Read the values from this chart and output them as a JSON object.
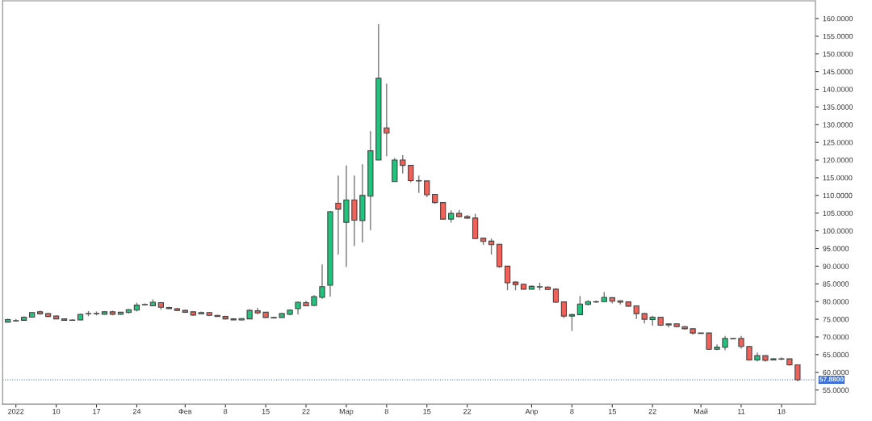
{
  "chart_data": {
    "type": "candlestick",
    "categories": [
      null,
      "2022",
      null,
      null,
      null,
      null,
      "10",
      null,
      null,
      null,
      null,
      "17",
      null,
      null,
      null,
      null,
      "24",
      null,
      null,
      null,
      null,
      null,
      "Фев",
      null,
      null,
      null,
      null,
      "8",
      null,
      null,
      null,
      null,
      "15",
      null,
      null,
      null,
      null,
      "22",
      null,
      null,
      null,
      null,
      "Мар",
      null,
      null,
      null,
      null,
      "8",
      null,
      null,
      null,
      null,
      "15",
      null,
      null,
      null,
      null,
      "22",
      null,
      null,
      null,
      null,
      null,
      null,
      null,
      "Апр",
      null,
      null,
      null,
      null,
      "8",
      null,
      null,
      null,
      null,
      "15",
      null,
      null,
      null,
      null,
      "22",
      null,
      null,
      null,
      null,
      null,
      "Май",
      null,
      null,
      null,
      null,
      "11",
      null,
      null,
      null,
      null,
      "18",
      null,
      null
    ],
    "ohlc": [
      [
        74.2,
        75.2,
        74.1,
        74.9
      ],
      [
        74.5,
        75.1,
        74.4,
        74.6
      ],
      [
        74.7,
        75.8,
        74.6,
        75.6
      ],
      [
        75.6,
        77.0,
        75.5,
        76.9
      ],
      [
        77.1,
        77.5,
        76.3,
        76.5
      ],
      [
        76.6,
        76.8,
        75.6,
        75.8
      ],
      [
        75.9,
        76.1,
        75.0,
        75.1
      ],
      [
        75.1,
        75.2,
        74.6,
        74.7
      ],
      [
        74.8,
        75.0,
        74.6,
        74.7
      ],
      [
        74.8,
        76.6,
        74.7,
        76.4
      ],
      [
        76.5,
        77.3,
        75.9,
        76.6
      ],
      [
        76.6,
        77.2,
        76.1,
        76.5
      ],
      [
        76.4,
        77.3,
        76.3,
        77.1
      ],
      [
        77.1,
        77.4,
        76.1,
        76.4
      ],
      [
        76.4,
        77.1,
        76.3,
        77.0
      ],
      [
        76.9,
        77.9,
        76.6,
        77.7
      ],
      [
        77.6,
        79.7,
        77.2,
        79.0
      ],
      [
        79.1,
        79.5,
        78.9,
        79.2
      ],
      [
        78.8,
        80.6,
        78.7,
        79.8
      ],
      [
        79.7,
        79.9,
        77.7,
        78.4
      ],
      [
        78.3,
        78.5,
        77.9,
        78.0
      ],
      [
        78.0,
        78.2,
        77.4,
        77.5
      ],
      [
        77.5,
        77.7,
        76.8,
        77.0
      ],
      [
        77.1,
        77.2,
        76.0,
        76.2
      ],
      [
        76.5,
        77.2,
        76.4,
        76.9
      ],
      [
        76.9,
        77.0,
        75.9,
        76.1
      ],
      [
        76.1,
        76.2,
        75.7,
        75.8
      ],
      [
        75.8,
        76.0,
        74.9,
        75.1
      ],
      [
        75.1,
        75.3,
        74.7,
        74.8
      ],
      [
        74.8,
        75.3,
        74.7,
        75.2
      ],
      [
        75.1,
        77.9,
        75.0,
        77.5
      ],
      [
        77.4,
        78.2,
        76.4,
        76.8
      ],
      [
        77.0,
        77.1,
        75.3,
        75.5
      ],
      [
        75.5,
        75.6,
        75.2,
        75.4
      ],
      [
        75.5,
        76.8,
        75.4,
        76.6
      ],
      [
        76.4,
        77.8,
        76.1,
        77.6
      ],
      [
        78.0,
        80.0,
        76.4,
        79.8
      ],
      [
        79.7,
        80.2,
        78.7,
        78.8
      ],
      [
        78.9,
        81.8,
        78.7,
        81.4
      ],
      [
        81.2,
        90.5,
        80.8,
        84.2
      ],
      [
        84.6,
        105.6,
        81.4,
        105.4
      ],
      [
        107.8,
        115.6,
        93.3,
        106.1
      ],
      [
        102.4,
        118.5,
        89.8,
        108.7
      ],
      [
        108.7,
        115.6,
        95.7,
        103.0
      ],
      [
        102.9,
        118.8,
        96.7,
        110.0
      ],
      [
        109.8,
        128.2,
        100.2,
        122.6
      ],
      [
        120.0,
        158.4,
        120.0,
        143.1
      ],
      [
        129.1,
        141.6,
        121.1,
        127.6
      ],
      [
        113.9,
        120.6,
        113.9,
        120.0
      ],
      [
        120.0,
        121.4,
        116.2,
        118.5
      ],
      [
        118.5,
        118.6,
        113.7,
        114.2
      ],
      [
        114.2,
        115.6,
        110.7,
        114.1
      ],
      [
        114.1,
        114.2,
        109.5,
        110.2
      ],
      [
        110.3,
        110.4,
        107.6,
        108.0
      ],
      [
        108.0,
        108.1,
        103.2,
        103.3
      ],
      [
        103.3,
        105.8,
        102.3,
        104.9
      ],
      [
        104.9,
        105.9,
        103.8,
        104.0
      ],
      [
        104.0,
        104.5,
        103.4,
        103.6
      ],
      [
        103.6,
        104.8,
        97.7,
        97.8
      ],
      [
        97.9,
        98.0,
        96.0,
        97.0
      ],
      [
        97.1,
        97.8,
        93.3,
        96.1
      ],
      [
        96.2,
        96.3,
        89.5,
        89.9
      ],
      [
        90.0,
        90.1,
        83.2,
        85.3
      ],
      [
        85.5,
        85.7,
        83.2,
        84.8
      ],
      [
        84.9,
        85.0,
        83.4,
        83.5
      ],
      [
        83.5,
        84.6,
        83.4,
        84.3
      ],
      [
        84.1,
        85.3,
        83.2,
        84.2
      ],
      [
        84.1,
        84.3,
        83.3,
        83.4
      ],
      [
        83.5,
        83.8,
        79.6,
        79.8
      ],
      [
        79.9,
        80.0,
        75.3,
        75.9
      ],
      [
        75.9,
        76.5,
        71.7,
        76.3
      ],
      [
        76.3,
        81.6,
        76.2,
        79.3
      ],
      [
        79.2,
        80.4,
        78.9,
        80.0
      ],
      [
        79.9,
        80.3,
        79.6,
        80.0
      ],
      [
        80.0,
        82.7,
        79.8,
        81.2
      ],
      [
        81.1,
        81.2,
        79.5,
        80.1
      ],
      [
        80.2,
        80.4,
        79.2,
        79.8
      ],
      [
        79.9,
        80.0,
        78.5,
        78.7
      ],
      [
        78.8,
        78.9,
        75.1,
        76.6
      ],
      [
        76.6,
        76.8,
        73.8,
        75.0
      ],
      [
        74.9,
        76.0,
        73.2,
        75.6
      ],
      [
        75.6,
        75.7,
        73.1,
        73.3
      ],
      [
        73.4,
        73.8,
        72.7,
        73.7
      ],
      [
        73.7,
        73.9,
        72.7,
        72.9
      ],
      [
        72.9,
        73.1,
        72.1,
        72.3
      ],
      [
        72.3,
        72.4,
        70.6,
        71.1
      ],
      [
        71.1,
        71.1,
        71.0,
        71.0
      ],
      [
        71.1,
        71.2,
        66.4,
        66.5
      ],
      [
        66.5,
        67.9,
        66.3,
        67.1
      ],
      [
        67.1,
        70.3,
        66.2,
        69.6
      ],
      [
        69.6,
        69.6,
        69.5,
        69.5
      ],
      [
        69.6,
        70.3,
        66.7,
        67.3
      ],
      [
        67.3,
        67.4,
        63.4,
        63.5
      ],
      [
        63.5,
        65.6,
        63.1,
        64.7
      ],
      [
        64.7,
        64.8,
        63.0,
        63.4
      ],
      [
        63.5,
        64.0,
        63.4,
        63.8
      ],
      [
        63.8,
        64.2,
        63.4,
        63.7
      ],
      [
        63.8,
        63.9,
        61.9,
        62.1
      ],
      [
        62.1,
        62.1,
        57.5,
        57.88
      ]
    ],
    "colors": [
      "#21c47d",
      "#21c47d",
      "#21c47d",
      "#21c47d",
      "#f0615a",
      "#f0615a",
      "#f0615a",
      "#f0615a",
      "#f0615a",
      "#21c47d",
      "#21c47d",
      "#f0615a",
      "#21c47d",
      "#f0615a",
      "#21c47d",
      "#21c47d",
      "#21c47d",
      "#21c47d",
      "#21c47d",
      "#f0615a",
      "#f0615a",
      "#f0615a",
      "#f0615a",
      "#f0615a",
      "#21c47d",
      "#f0615a",
      "#f0615a",
      "#f0615a",
      "#f0615a",
      "#21c47d",
      "#21c47d",
      "#f0615a",
      "#f0615a",
      "#f0615a",
      "#21c47d",
      "#21c47d",
      "#21c47d",
      "#f0615a",
      "#21c47d",
      "#21c47d",
      "#21c47d",
      "#f0615a",
      "#21c47d",
      "#f0615a",
      "#21c47d",
      "#21c47d",
      "#21c47d",
      "#f0615a",
      "#21c47d",
      "#f0615a",
      "#f0615a",
      "#f0615a",
      "#f0615a",
      "#f0615a",
      "#f0615a",
      "#21c47d",
      "#f0615a",
      "#f0615a",
      "#f0615a",
      "#f0615a",
      "#f0615a",
      "#f0615a",
      "#f0615a",
      "#f0615a",
      "#f0615a",
      "#21c47d",
      "#21c47d",
      "#f0615a",
      "#f0615a",
      "#f0615a",
      "#21c47d",
      "#21c47d",
      "#21c47d",
      "#21c47d",
      "#21c47d",
      "#f0615a",
      "#f0615a",
      "#f0615a",
      "#f0615a",
      "#f0615a",
      "#21c47d",
      "#f0615a",
      "#21c47d",
      "#f0615a",
      "#f0615a",
      "#f0615a",
      "#f0615a",
      "#f0615a",
      "#21c47d",
      "#21c47d",
      "#f0615a",
      "#f0615a",
      "#f0615a",
      "#21c47d",
      "#f0615a",
      "#21c47d",
      "#f0615a",
      "#f0615a",
      "#f0615a"
    ],
    "ylim": [
      51,
      165
    ],
    "yticks": [
      {
        "value": 55,
        "label": "55.0000"
      },
      {
        "value": 60,
        "label": "60.0000"
      },
      {
        "value": 65,
        "label": "65.0000"
      },
      {
        "value": 70,
        "label": "70.0000"
      },
      {
        "value": 75,
        "label": "75.0000"
      },
      {
        "value": 80,
        "label": "80.0000"
      },
      {
        "value": 85,
        "label": "85.0000"
      },
      {
        "value": 90,
        "label": "90.0000"
      },
      {
        "value": 95,
        "label": "95.0000"
      },
      {
        "value": 100,
        "label": "100.0000"
      },
      {
        "value": 105,
        "label": "105.0000"
      },
      {
        "value": 110,
        "label": "110.0000"
      },
      {
        "value": 115,
        "label": "115.0000"
      },
      {
        "value": 120,
        "label": "120.0000"
      },
      {
        "value": 125,
        "label": "125.0000"
      },
      {
        "value": 130,
        "label": "130.0000"
      },
      {
        "value": 135,
        "label": "135.0000"
      },
      {
        "value": 140,
        "label": "140.0000"
      },
      {
        "value": 145,
        "label": "145.0000"
      },
      {
        "value": 150,
        "label": "150.0000"
      },
      {
        "value": 155,
        "label": "155.0000"
      },
      {
        "value": 160,
        "label": "160.0000"
      }
    ],
    "ref_lines": [
      {
        "axis": "y",
        "value": 57.88,
        "label": "57.8800",
        "color": "#3a6fd8",
        "line_style": "dotted"
      }
    ],
    "grid": false,
    "legend": false
  }
}
